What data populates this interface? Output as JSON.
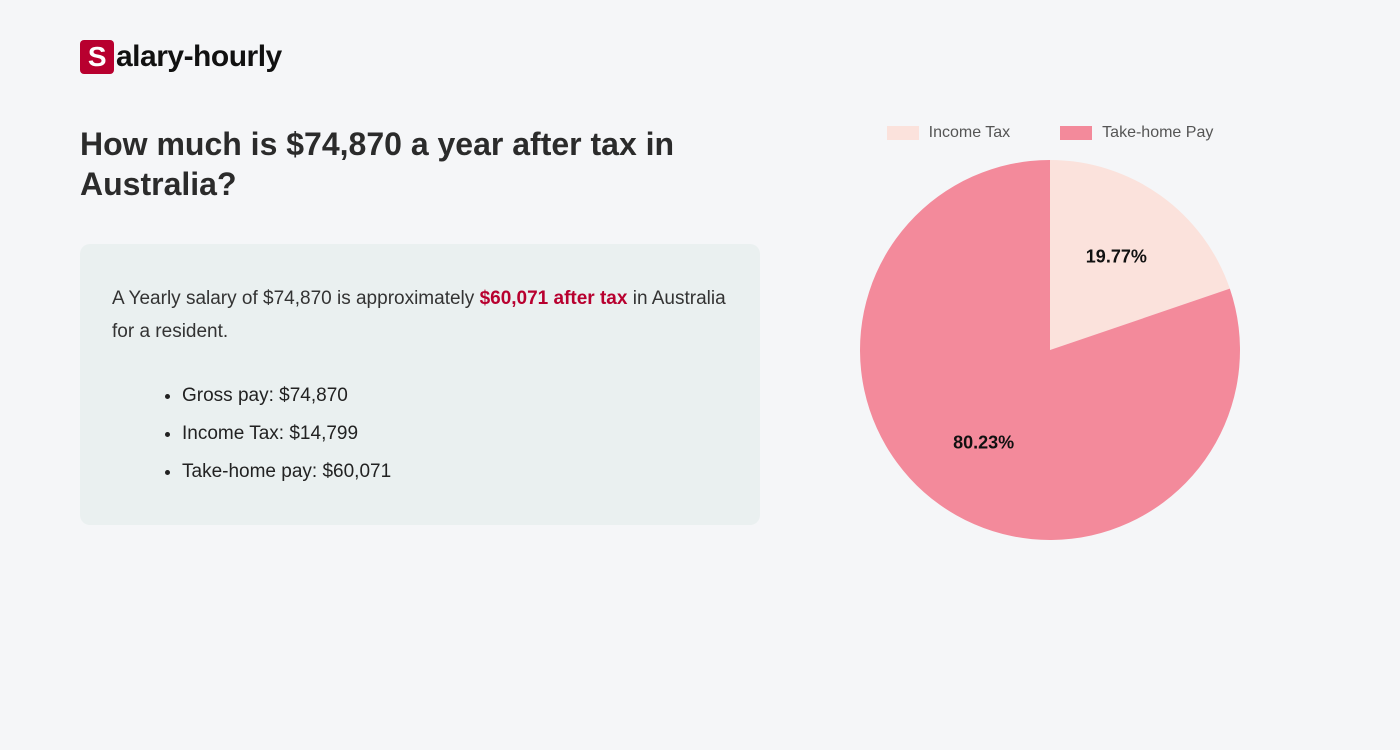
{
  "logo": {
    "initial": "S",
    "rest": "alary-hourly"
  },
  "heading": "How much is $74,870 a year after tax in Australia?",
  "summary": {
    "prefix": "A Yearly salary of $74,870 is approximately ",
    "highlight": "$60,071 after tax",
    "suffix": " in Australia for a resident."
  },
  "bullets": [
    "Gross pay: $74,870",
    "Income Tax: $14,799",
    "Take-home pay: $60,071"
  ],
  "chart": {
    "type": "pie",
    "background_color": "#f5f6f8",
    "radius": 190,
    "slices": [
      {
        "label": "Income Tax",
        "value": 19.77,
        "pct_label": "19.77%",
        "color": "#fbe2dc"
      },
      {
        "label": "Take-home Pay",
        "value": 80.23,
        "pct_label": "80.23%",
        "color": "#f38a9b"
      }
    ],
    "start_angle_deg": -90,
    "label_fontsize": 18,
    "legend_fontsize": 16,
    "legend_text_color": "#555555",
    "swatch_w": 32,
    "swatch_h": 14
  },
  "colors": {
    "page_bg": "#f5f6f8",
    "box_bg": "#eaf0f0",
    "accent": "#b8002f",
    "heading": "#2b2b2b",
    "body_text": "#333333"
  },
  "typography": {
    "heading_fontsize": 32,
    "heading_weight": 700,
    "body_fontsize": 19,
    "logo_fontsize": 30
  }
}
